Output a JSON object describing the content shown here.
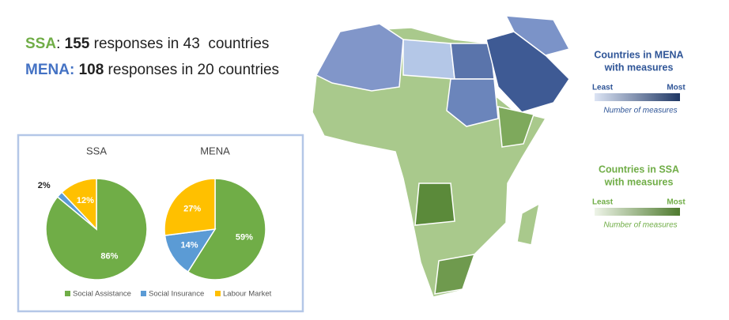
{
  "header": {
    "lines": [
      {
        "region": "SSA",
        "separator": ":",
        "count": 155,
        "rest": "responses in 43  countries"
      },
      {
        "region": "MENA:",
        "count": 108,
        "rest": "responses in 20 countries"
      }
    ]
  },
  "chart_data": [
    {
      "type": "pie",
      "title": "SSA",
      "categories": [
        "Social Assistance",
        "Social Insurance",
        "Labour Market"
      ],
      "values": [
        86,
        2,
        12
      ],
      "value_labels": [
        "86%",
        "2%",
        "12%"
      ],
      "colors": [
        "#70ad47",
        "#5b9bd5",
        "#ffc000"
      ]
    },
    {
      "type": "pie",
      "title": "MENA",
      "categories": [
        "Social Assistance",
        "Social Insurance",
        "Labour Market"
      ],
      "values": [
        59,
        14,
        27
      ],
      "value_labels": [
        "59%",
        "14%",
        "27%"
      ],
      "colors": [
        "#70ad47",
        "#5b9bd5",
        "#ffc000"
      ]
    }
  ],
  "map_legends": [
    {
      "title": [
        "Countries in MENA",
        "with measures"
      ],
      "low": "Least",
      "high": "Most",
      "caption": "Number of measures",
      "colors": [
        "#dce4f4",
        "#1f3764"
      ],
      "text_color": "#2f5597"
    },
    {
      "title": [
        "Countries in SSA",
        "with measures"
      ],
      "low": "Least",
      "high": "Most",
      "caption": "Number of measures",
      "colors": [
        "#eef4e8",
        "#4e7a2e"
      ],
      "text_color": "#70ad47"
    }
  ]
}
